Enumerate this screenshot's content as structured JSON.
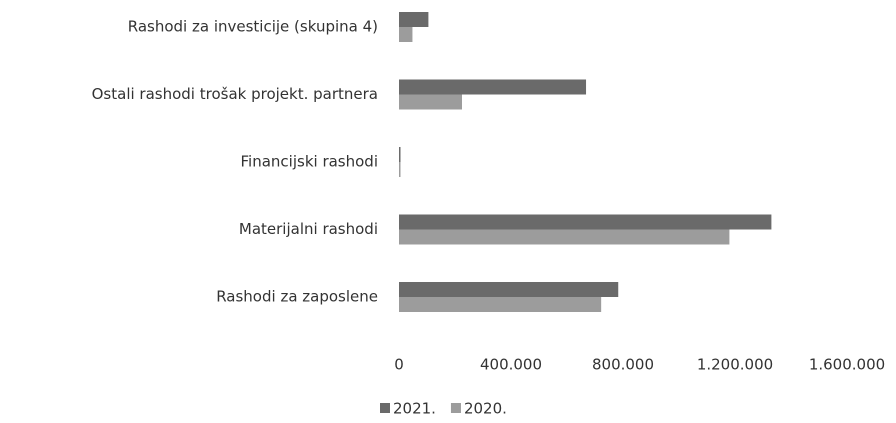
{
  "chart_data": {
    "type": "hbar",
    "categories": [
      "Rashodi za investicije (skupina 4)",
      "Ostali rashodi trošak projekt. partnera",
      "Financijski rashodi",
      "Materijalni rashodi",
      "Rashodi za zaposlene"
    ],
    "series": [
      {
        "name": "2021.",
        "color": "#6a6a6a",
        "values": [
          105000,
          668000,
          5000,
          1330000,
          783000
        ]
      },
      {
        "name": "2020.",
        "color": "#9c9c9c",
        "values": [
          48000,
          225000,
          3000,
          1180000,
          722000
        ]
      }
    ],
    "xlim": [
      0,
      1600000
    ],
    "xticks": [
      0,
      {
        "value": 400000,
        "label": "400.000"
      },
      {
        "value": 800000,
        "label": "800.000"
      },
      {
        "value": 1200000,
        "label": "1.200.000"
      },
      {
        "value": 1600000,
        "label": "1.600.000"
      }
    ],
    "grid": false
  }
}
